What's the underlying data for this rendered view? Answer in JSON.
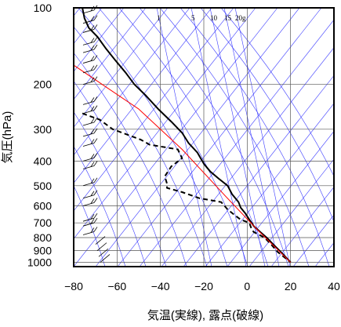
{
  "chart_data": {
    "type": "line",
    "title": "",
    "xlabel": "気温(実線), 露点(破線)",
    "ylabel": "気圧(hPa)",
    "xlim": [
      -80,
      40
    ],
    "ylim": [
      1040,
      100
    ],
    "yscale": "log",
    "x_ticks": [
      -80,
      -60,
      -40,
      -20,
      0,
      20,
      40
    ],
    "y_ticks": [
      100,
      200,
      300,
      400,
      500,
      600,
      700,
      800,
      900,
      1000
    ],
    "grid": true,
    "mixing_ratio_labels": [
      {
        "text": "1",
        "value": 1
      },
      {
        "text": "5",
        "value": 5
      },
      {
        "text": "10",
        "value": 10
      },
      {
        "text": "15",
        "value": 15
      },
      {
        "text": "20g",
        "value": 20
      }
    ],
    "series": [
      {
        "style": "solid",
        "color": "#000000",
        "points": [
          [
            -76,
            100
          ],
          [
            -75,
            110
          ],
          [
            -73,
            120
          ],
          [
            -69,
            130
          ],
          [
            -65,
            145
          ],
          [
            -61,
            160
          ],
          [
            -56,
            180
          ],
          [
            -52,
            200
          ],
          [
            -47,
            220
          ],
          [
            -41,
            250
          ],
          [
            -35,
            280
          ],
          [
            -30,
            310
          ],
          [
            -27,
            340
          ],
          [
            -23,
            370
          ],
          [
            -20,
            410
          ],
          [
            -17,
            440
          ],
          [
            -13,
            470
          ],
          [
            -9,
            500
          ],
          [
            -7,
            540
          ],
          [
            -4,
            580
          ],
          [
            -3,
            610
          ],
          [
            -1,
            640
          ],
          [
            1,
            680
          ],
          [
            3,
            720
          ],
          [
            6,
            760
          ],
          [
            9,
            800
          ],
          [
            12,
            850
          ],
          [
            16,
            920
          ],
          [
            20,
            1000
          ]
        ]
      },
      {
        "style": "dashed",
        "color": "#000000",
        "points": [
          [
            -76,
            260
          ],
          [
            -68,
            275
          ],
          [
            -62,
            300
          ],
          [
            -49,
            330
          ],
          [
            -45,
            345
          ],
          [
            -32,
            360
          ],
          [
            -30,
            390
          ],
          [
            -35,
            420
          ],
          [
            -38,
            460
          ],
          [
            -37,
            490
          ],
          [
            -37,
            510
          ],
          [
            -30,
            530
          ],
          [
            -22,
            560
          ],
          [
            -12,
            580
          ],
          [
            -9,
            620
          ],
          [
            -6,
            650
          ],
          [
            -3,
            680
          ],
          [
            1,
            700
          ],
          [
            2,
            740
          ],
          [
            3,
            760
          ],
          [
            8,
            800
          ],
          [
            11,
            850
          ],
          [
            14,
            910
          ],
          [
            20,
            1000
          ]
        ]
      },
      {
        "style": "solid",
        "color": "#ff0000",
        "points": [
          [
            -80,
            168
          ],
          [
            -50,
            250
          ],
          [
            -30,
            360
          ],
          [
            -10,
            550
          ],
          [
            5,
            750
          ],
          [
            20,
            1000
          ]
        ]
      }
    ]
  }
}
